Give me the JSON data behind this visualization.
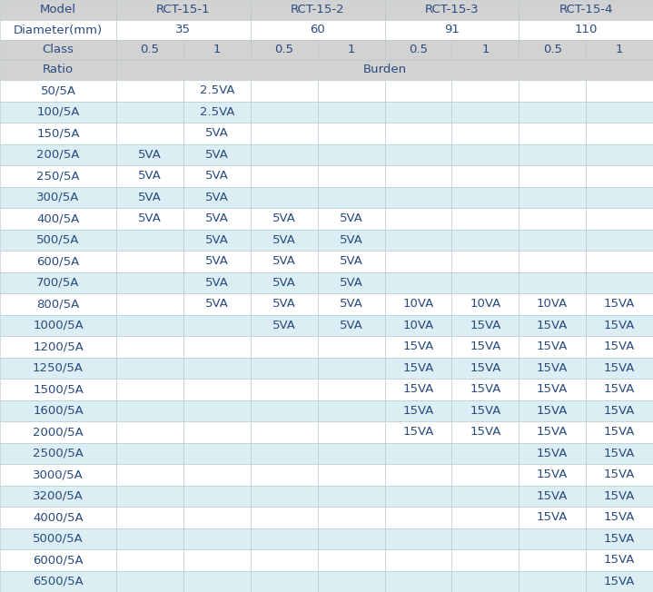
{
  "ratios": [
    "50/5A",
    "100/5A",
    "150/5A",
    "200/5A",
    "250/5A",
    "300/5A",
    "400/5A",
    "500/5A",
    "600/5A",
    "700/5A",
    "800/5A",
    "1000/5A",
    "1200/5A",
    "1250/5A",
    "1500/5A",
    "1600/5A",
    "2000/5A",
    "2500/5A",
    "3000/5A",
    "3200/5A",
    "4000/5A",
    "5000/5A",
    "6000/5A",
    "6500/5A"
  ],
  "burden_data": [
    [
      "",
      "2.5VA",
      "",
      "",
      "",
      "",
      "",
      ""
    ],
    [
      "",
      "2.5VA",
      "",
      "",
      "",
      "",
      "",
      ""
    ],
    [
      "",
      "5VA",
      "",
      "",
      "",
      "",
      "",
      ""
    ],
    [
      "5VA",
      "5VA",
      "",
      "",
      "",
      "",
      "",
      ""
    ],
    [
      "5VA",
      "5VA",
      "",
      "",
      "",
      "",
      "",
      ""
    ],
    [
      "5VA",
      "5VA",
      "",
      "",
      "",
      "",
      "",
      ""
    ],
    [
      "5VA",
      "5VA",
      "5VA",
      "5VA",
      "",
      "",
      "",
      ""
    ],
    [
      "",
      "5VA",
      "5VA",
      "5VA",
      "",
      "",
      "",
      ""
    ],
    [
      "",
      "5VA",
      "5VA",
      "5VA",
      "",
      "",
      "",
      ""
    ],
    [
      "",
      "5VA",
      "5VA",
      "5VA",
      "",
      "",
      "",
      ""
    ],
    [
      "",
      "5VA",
      "5VA",
      "5VA",
      "10VA",
      "10VA",
      "10VA",
      "15VA"
    ],
    [
      "",
      "",
      "5VA",
      "5VA",
      "10VA",
      "15VA",
      "15VA",
      "15VA"
    ],
    [
      "",
      "",
      "",
      "",
      "15VA",
      "15VA",
      "15VA",
      "15VA"
    ],
    [
      "",
      "",
      "",
      "",
      "15VA",
      "15VA",
      "15VA",
      "15VA"
    ],
    [
      "",
      "",
      "",
      "",
      "15VA",
      "15VA",
      "15VA",
      "15VA"
    ],
    [
      "",
      "",
      "",
      "",
      "15VA",
      "15VA",
      "15VA",
      "15VA"
    ],
    [
      "",
      "",
      "",
      "",
      "15VA",
      "15VA",
      "15VA",
      "15VA"
    ],
    [
      "",
      "",
      "",
      "",
      "",
      "",
      "15VA",
      "15VA"
    ],
    [
      "",
      "",
      "",
      "",
      "",
      "",
      "15VA",
      "15VA"
    ],
    [
      "",
      "",
      "",
      "",
      "",
      "",
      "15VA",
      "15VA"
    ],
    [
      "",
      "",
      "",
      "",
      "",
      "",
      "15VA",
      "15VA"
    ],
    [
      "",
      "",
      "",
      "",
      "",
      "",
      "",
      "15VA"
    ],
    [
      "",
      "",
      "",
      "",
      "",
      "",
      "",
      "15VA"
    ],
    [
      "",
      "",
      "",
      "",
      "",
      "",
      "",
      "15VA"
    ]
  ],
  "bg_header_gray": "#d2d2d2",
  "bg_diameter_row": "#f0f0f0",
  "bg_row_blue": "#daeef3",
  "bg_row_white": "#ffffff",
  "border_color": "#b0c4cc",
  "text_color": "#2a4a7f",
  "font_size": 9.5
}
